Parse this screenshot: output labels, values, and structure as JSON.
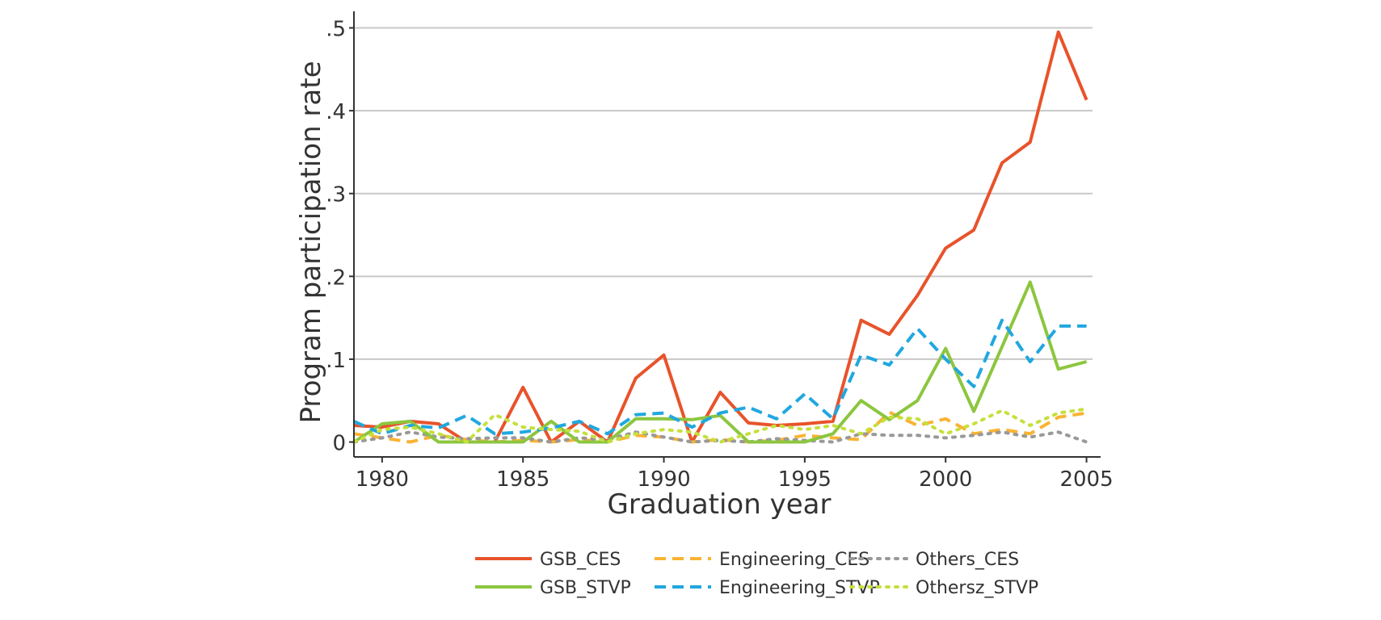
{
  "chart_data": {
    "type": "line",
    "title": "",
    "xlabel": "Graduation year",
    "ylabel": "Program participation rate",
    "xlim": [
      1979,
      2005.5
    ],
    "ylim": [
      -0.018,
      0.52
    ],
    "xticks": [
      1980,
      1985,
      1990,
      1995,
      2000,
      2005
    ],
    "xtick_labels": [
      "1980",
      "1985",
      "1990",
      "1995",
      "2000",
      "2005"
    ],
    "yticks": [
      0,
      0.1,
      0.2,
      0.3,
      0.4,
      0.5
    ],
    "ytick_labels": [
      "0",
      ".1",
      ".2",
      ".3",
      ".4",
      ".5"
    ],
    "grid": "horizontal",
    "legend_position": "bottom",
    "x": [
      1979,
      1980,
      1981,
      1982,
      1983,
      1984,
      1985,
      1986,
      1987,
      1988,
      1989,
      1990,
      1991,
      1992,
      1993,
      1994,
      1995,
      1996,
      1997,
      1998,
      1999,
      2000,
      2001,
      2002,
      2003,
      2004,
      2005
    ],
    "series": [
      {
        "name": "GSB_CES",
        "color": "#e8532b",
        "style": "solid",
        "values": [
          0.02,
          0.018,
          0.025,
          0.022,
          0.0,
          0.0,
          0.066,
          0.0,
          0.025,
          0.0,
          0.077,
          0.105,
          0.0,
          0.06,
          0.023,
          0.02,
          0.022,
          0.025,
          0.147,
          0.13,
          0.177,
          0.234,
          0.256,
          0.337,
          0.362,
          0.495,
          0.413
        ]
      },
      {
        "name": "Engineering_CES",
        "color": "#f9b334",
        "style": "dashed",
        "values": [
          0.01,
          0.005,
          0.0,
          0.008,
          0.003,
          0.0,
          0.002,
          0.0,
          0.003,
          0.0,
          0.008,
          0.006,
          0.0,
          0.003,
          0.0,
          0.002,
          0.008,
          0.005,
          0.003,
          0.036,
          0.02,
          0.028,
          0.01,
          0.015,
          0.01,
          0.03,
          0.035
        ]
      },
      {
        "name": "Others_CES",
        "color": "#999999",
        "style": "dotted",
        "values": [
          0.0,
          0.005,
          0.012,
          0.006,
          0.004,
          0.005,
          0.005,
          0.0,
          0.005,
          0.003,
          0.012,
          0.006,
          0.0,
          0.002,
          0.0,
          0.004,
          0.002,
          0.0,
          0.01,
          0.008,
          0.008,
          0.005,
          0.008,
          0.012,
          0.006,
          0.012,
          0.0
        ]
      },
      {
        "name": "GSB_STVP",
        "color": "#8cc63f",
        "style": "solid",
        "values": [
          0.0,
          0.022,
          0.025,
          0.0,
          0.0,
          0.0,
          0.0,
          0.025,
          0.0,
          0.0,
          0.028,
          0.028,
          0.027,
          0.032,
          0.0,
          0.0,
          0.0,
          0.01,
          0.05,
          0.027,
          0.05,
          0.113,
          0.037,
          0.115,
          0.193,
          0.088,
          0.097
        ]
      },
      {
        "name": "Engineering_STVP",
        "color": "#21a7df",
        "style": "dashed",
        "values": [
          0.025,
          0.01,
          0.02,
          0.017,
          0.032,
          0.01,
          0.012,
          0.017,
          0.025,
          0.01,
          0.033,
          0.035,
          0.018,
          0.035,
          0.042,
          0.028,
          0.058,
          0.028,
          0.105,
          0.093,
          0.137,
          0.1,
          0.067,
          0.147,
          0.097,
          0.14,
          0.14
        ]
      },
      {
        "name": "Othersz_STVP",
        "color": "#c5e03c",
        "style": "dotted",
        "values": [
          0.0,
          0.015,
          0.018,
          0.01,
          0.0,
          0.033,
          0.018,
          0.015,
          0.013,
          0.0,
          0.01,
          0.015,
          0.012,
          0.0,
          0.01,
          0.02,
          0.015,
          0.02,
          0.01,
          0.03,
          0.028,
          0.01,
          0.022,
          0.038,
          0.02,
          0.035,
          0.04
        ]
      }
    ]
  }
}
